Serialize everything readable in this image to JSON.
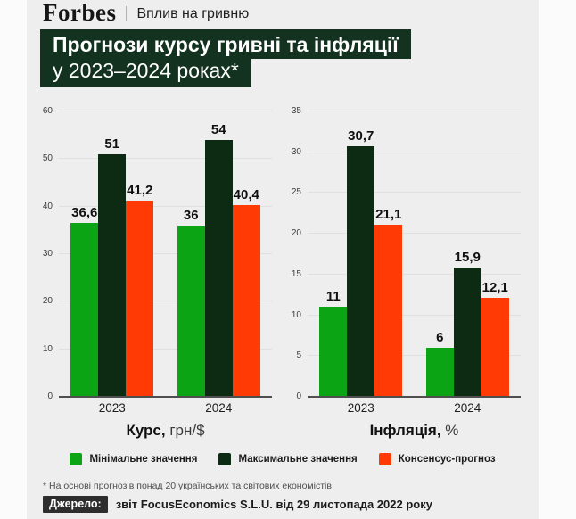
{
  "colors": {
    "card_bg": "#eeeeee",
    "page_bg": "#fbfbfb",
    "title_bg": "#133320",
    "min_green": "#0ba415",
    "max_dark_green": "#0d2b12",
    "consensus_orange": "#ff3a05",
    "baseline": "#4f4f4f",
    "gridline": "#e0e0e0",
    "source_badge_bg": "#2d2d2d"
  },
  "masthead": {
    "brand": "Forbes",
    "section": "Вплив на гривню"
  },
  "title": {
    "line1": "Прогнози курсу гривні та інфляції",
    "line2": "у 2023–2024 роках*"
  },
  "chart_data": [
    {
      "type": "bar",
      "title": "Курс, грн/$",
      "title_bold": "Курс,",
      "title_unit": " грн/$",
      "categories": [
        "2023",
        "2024"
      ],
      "series": [
        {
          "name": "Мінімальне значення",
          "color": "#0ba415",
          "values": [
            36.6,
            36
          ],
          "labels": [
            "36,6",
            "36"
          ]
        },
        {
          "name": "Максимальне значення",
          "color": "#0d2b12",
          "values": [
            51,
            54
          ],
          "labels": [
            "51",
            "54"
          ]
        },
        {
          "name": "Консенсус-прогноз",
          "color": "#ff3a05",
          "values": [
            41.2,
            40.4
          ],
          "labels": [
            "41,2",
            "40,4"
          ]
        }
      ],
      "ylim": [
        0,
        60
      ],
      "yticks": [
        0,
        10,
        20,
        30,
        40,
        50,
        60
      ],
      "grid": true,
      "legend_position": "bottom-shared"
    },
    {
      "type": "bar",
      "title": "Інфляція, %",
      "title_bold": "Інфляція,",
      "title_unit": " %",
      "categories": [
        "2023",
        "2024"
      ],
      "series": [
        {
          "name": "Мінімальне значення",
          "color": "#0ba415",
          "values": [
            11,
            6
          ],
          "labels": [
            "11",
            "6"
          ]
        },
        {
          "name": "Максимальне значення",
          "color": "#0d2b12",
          "values": [
            30.7,
            15.9
          ],
          "labels": [
            "30,7",
            "15,9"
          ]
        },
        {
          "name": "Консенсус-прогноз",
          "color": "#ff3a05",
          "values": [
            21.1,
            12.1
          ],
          "labels": [
            "21,1",
            "12,1"
          ]
        }
      ],
      "ylim": [
        0,
        35
      ],
      "yticks": [
        0,
        5,
        10,
        15,
        20,
        25,
        30,
        35
      ],
      "grid": true,
      "legend_position": "bottom-shared"
    }
  ],
  "footnote": "* На основі прогнозів понад 20 українських та світових економістів.",
  "source": {
    "label": "Джерело:",
    "text": "звіт FocusEconomics S.L.U. від 29 листопада 2022 року"
  }
}
